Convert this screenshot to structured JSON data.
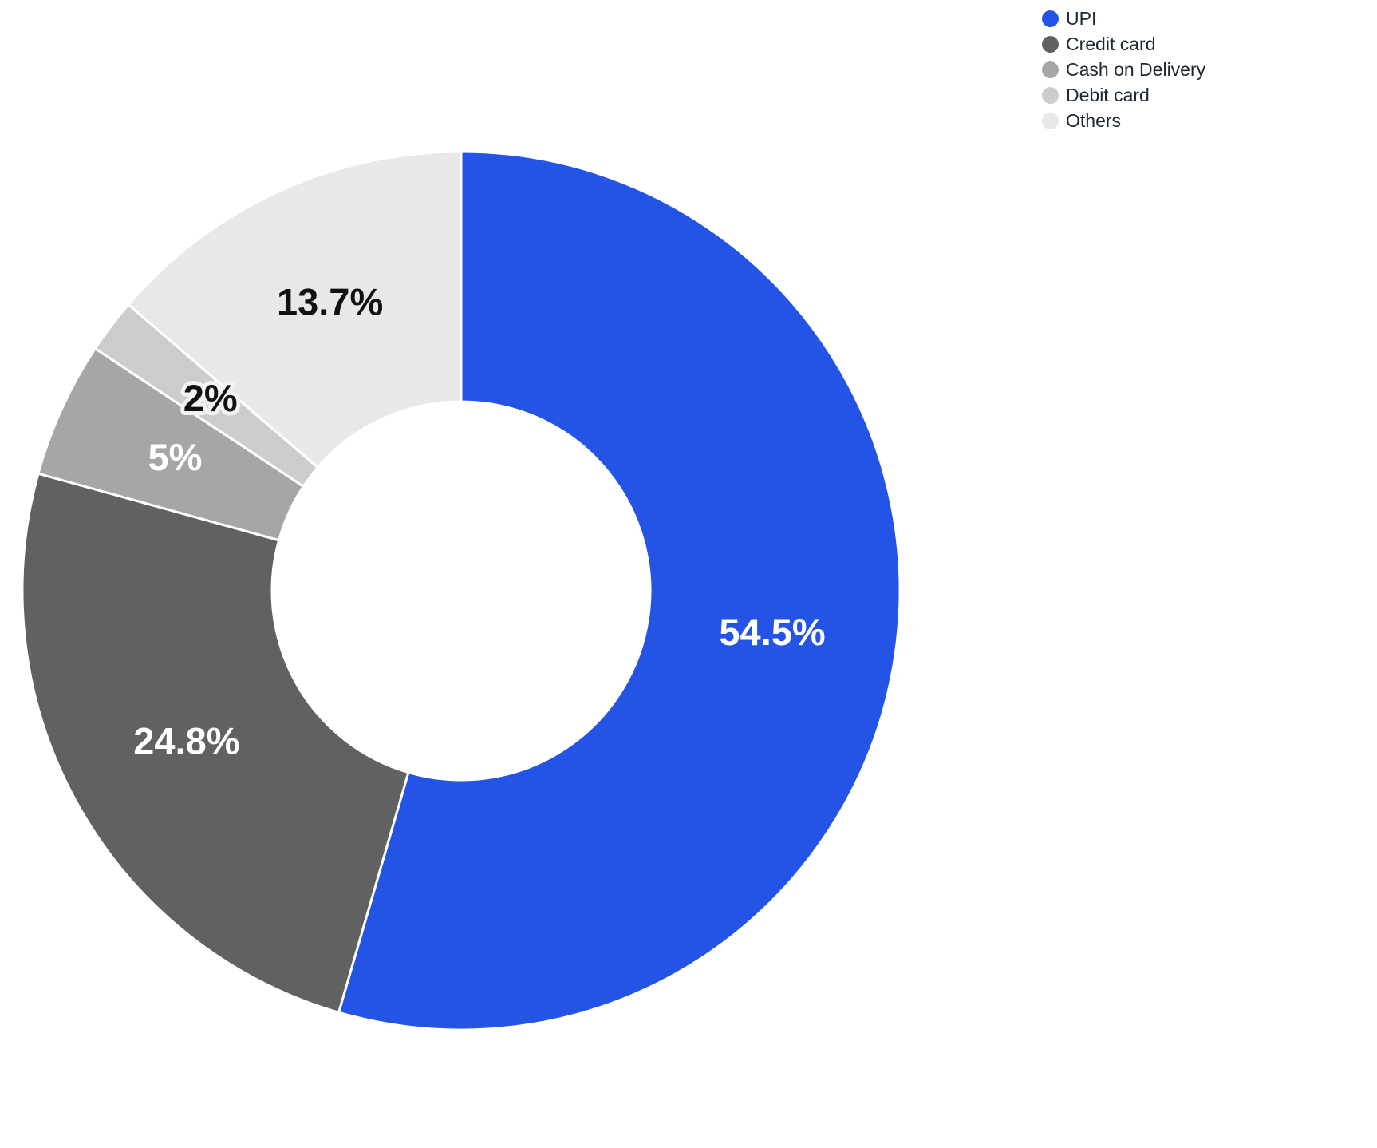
{
  "chart_data": {
    "type": "pie",
    "subtype": "donut",
    "title": "",
    "categories": [
      "UPI",
      "Credit card",
      "Cash on Delivery",
      "Debit card",
      "Others"
    ],
    "values": [
      54.5,
      24.8,
      5,
      2,
      13.7
    ],
    "labels": [
      "54.5%",
      "24.8%",
      "5%",
      "2%",
      "13.7%"
    ],
    "colors": [
      "#2354e6",
      "#616161",
      "#a6a6a6",
      "#cccccc",
      "#e8e8e8"
    ],
    "label_colors": [
      "#ffffff",
      "#ffffff",
      "#ffffff",
      "#111111",
      "#111111"
    ],
    "label_halo": [
      false,
      false,
      false,
      true,
      false
    ],
    "start_angle_deg": 0,
    "direction": "clockwise",
    "legend_position": "top-right",
    "legend": {
      "items": [
        {
          "label": "UPI",
          "color": "#2354e6"
        },
        {
          "label": "Credit card",
          "color": "#616161"
        },
        {
          "label": "Cash on Delivery",
          "color": "#a6a6a6"
        },
        {
          "label": "Debit card",
          "color": "#cccccc"
        },
        {
          "label": "Others",
          "color": "#e8e8e8"
        }
      ]
    }
  }
}
